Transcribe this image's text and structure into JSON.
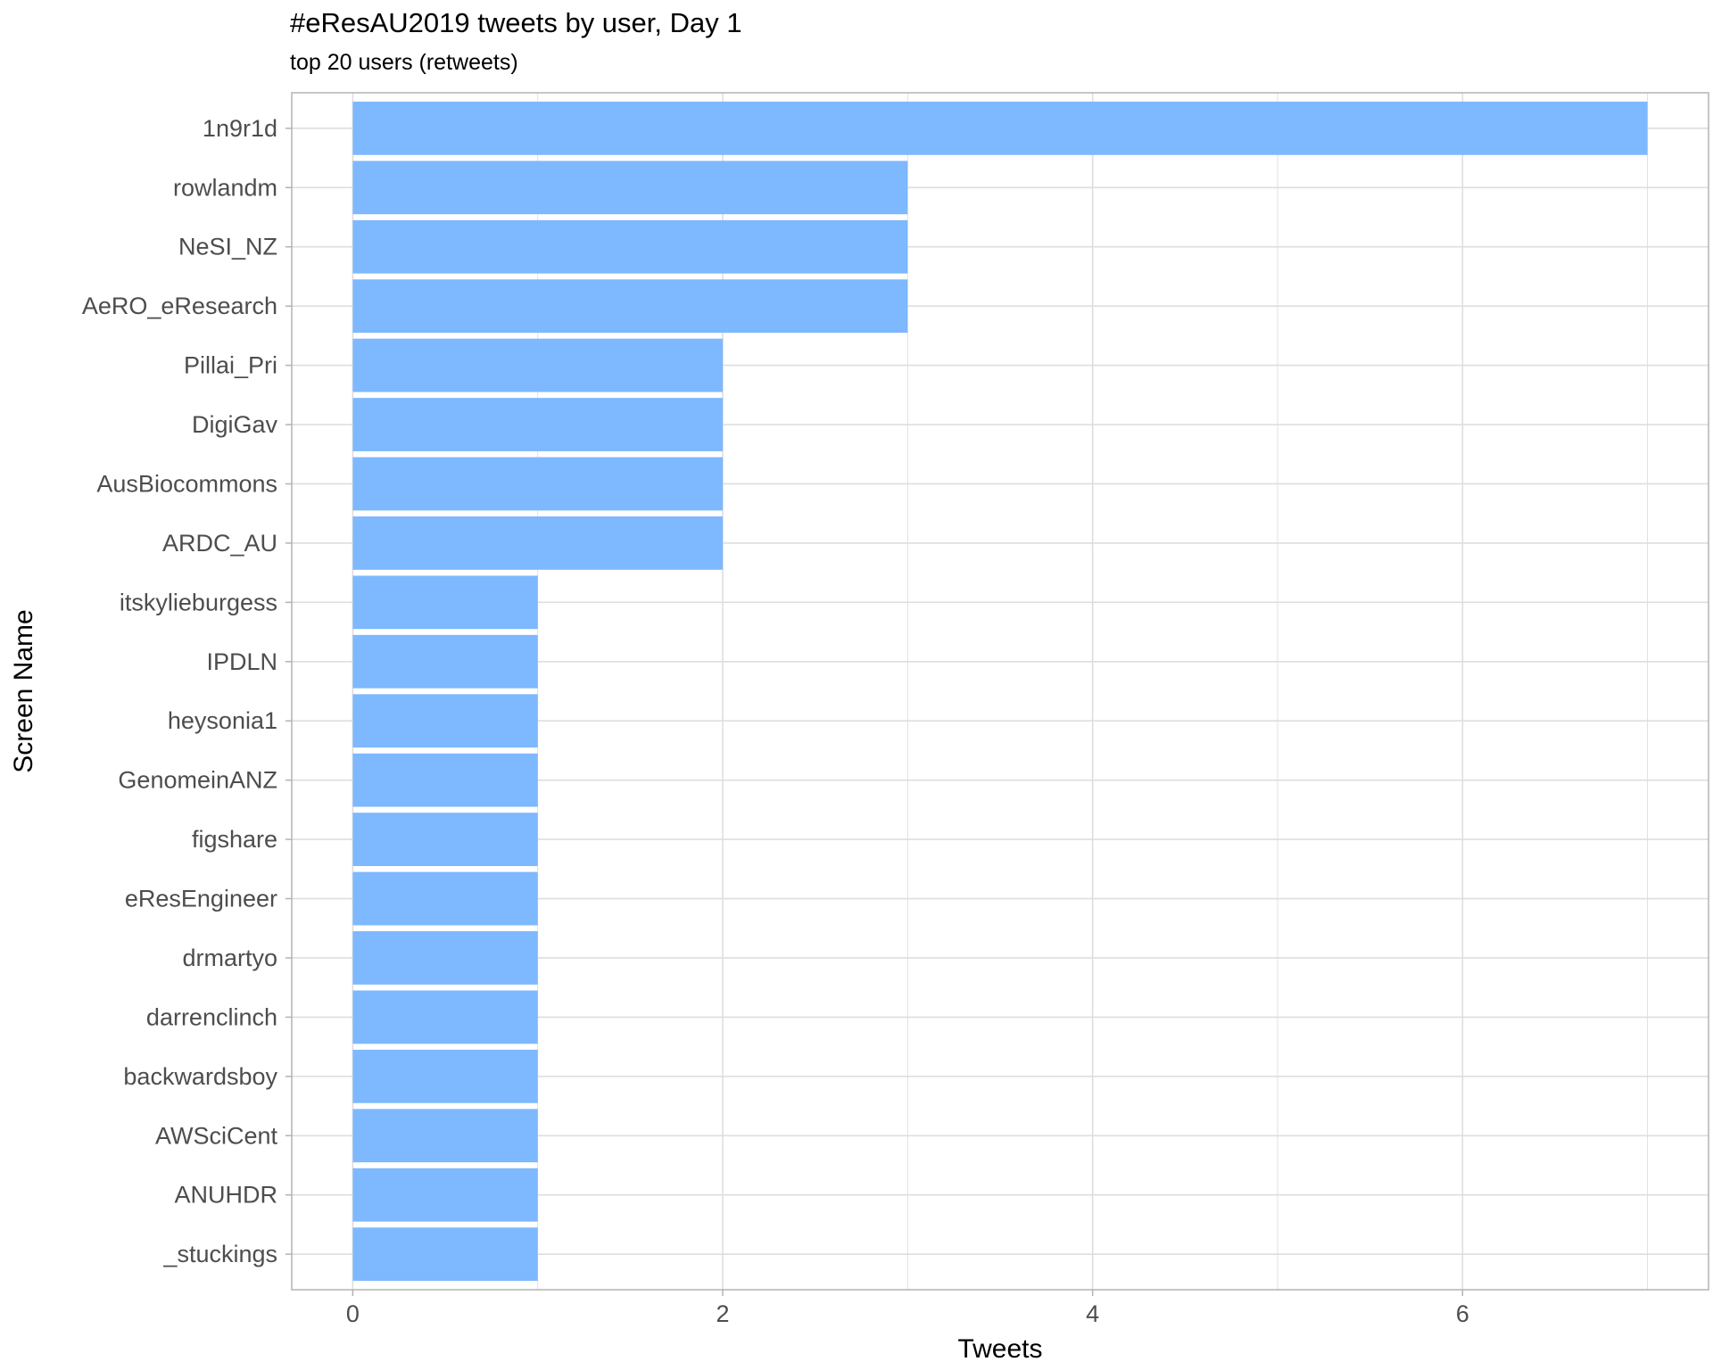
{
  "chart_data": {
    "type": "bar",
    "orientation": "horizontal",
    "title": "#eResAU2019 tweets by user, Day 1",
    "subtitle": "top 20 users (retweets)",
    "xlabel": "Tweets",
    "ylabel": "Screen Name",
    "categories": [
      "1n9r1d",
      "rowlandm",
      "NeSI_NZ",
      "AeRO_eResearch",
      "Pillai_Pri",
      "DigiGav",
      "AusBiocommons",
      "ARDC_AU",
      "itskylieburgess",
      "IPDLN",
      "heysonia1",
      "GenomeinANZ",
      "figshare",
      "eResEngineer",
      "drmartyo",
      "darrenclinch",
      "backwardsboy",
      "AWSciCent",
      "ANUHDR",
      "_stuckings"
    ],
    "values": [
      7,
      3,
      3,
      3,
      2,
      2,
      2,
      2,
      1,
      1,
      1,
      1,
      1,
      1,
      1,
      1,
      1,
      1,
      1,
      1
    ],
    "xlim": [
      -0.33,
      7.33
    ],
    "xticks": [
      0,
      2,
      4,
      6
    ],
    "grid": true,
    "legend": "none",
    "colors": {
      "bar": "#7EB8FE",
      "grid": "#DEDEDE",
      "frame": "#B3B3B3",
      "tick_label": "#4D4D4D"
    }
  }
}
